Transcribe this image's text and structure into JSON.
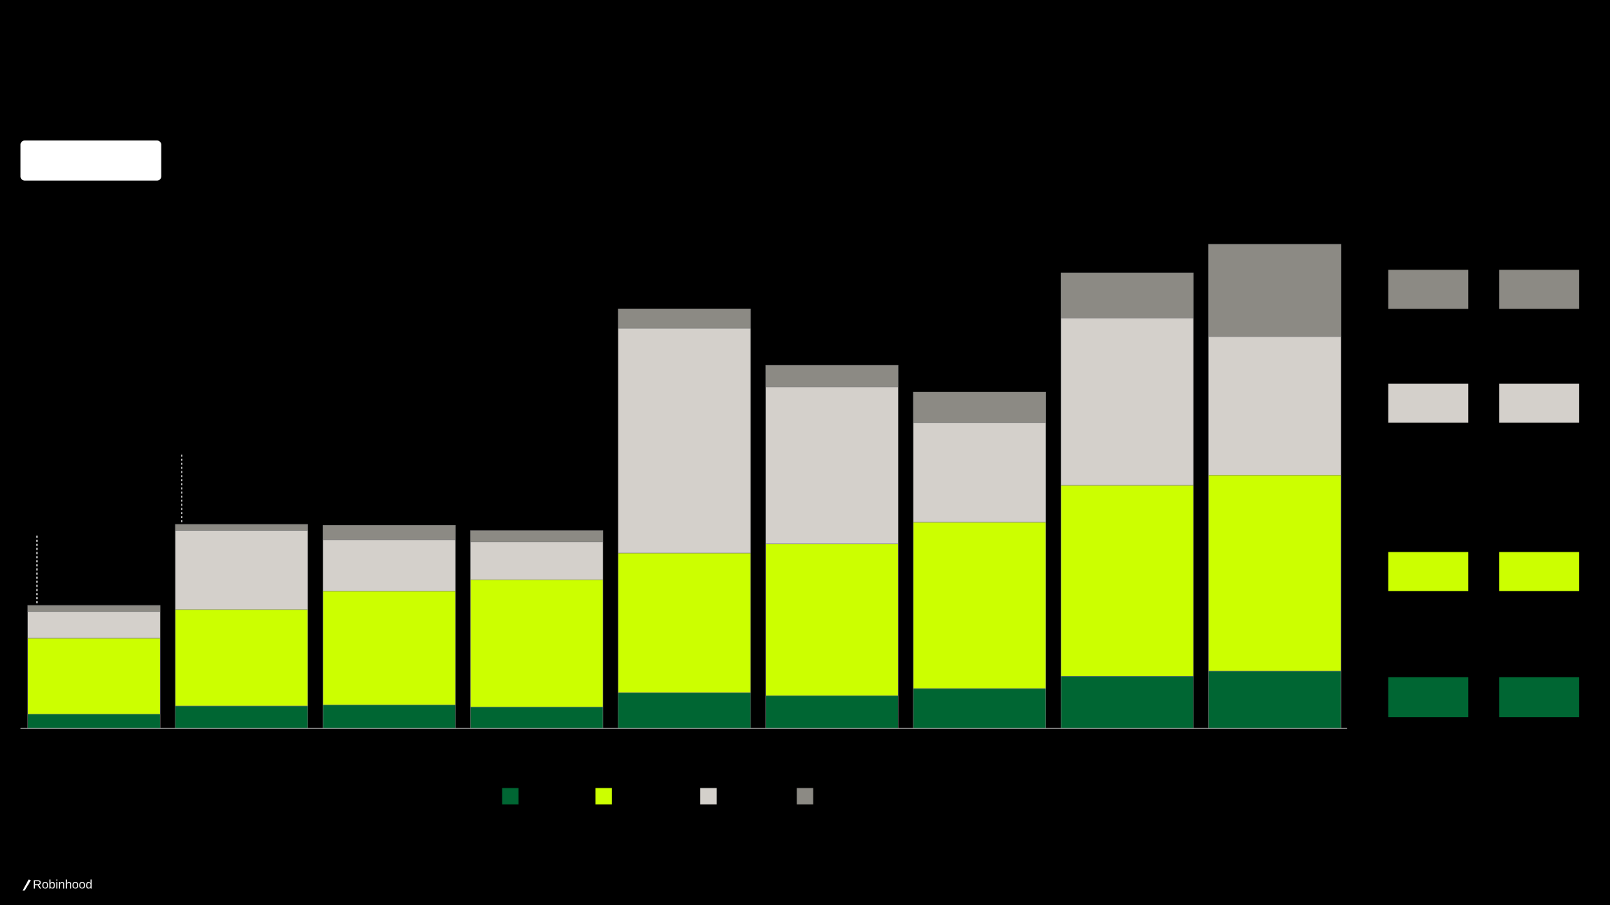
{
  "chart_data": {
    "type": "stacked-bar",
    "categories": [
      null,
      null,
      null,
      null,
      null,
      null,
      null,
      null,
      null
    ],
    "series": [
      {
        "color": "#006633",
        "values": [
          14,
          22,
          23,
          21,
          35,
          32,
          39,
          51,
          56
        ]
      },
      {
        "color": "#ccff00",
        "values": [
          74,
          94,
          111,
          124,
          136,
          148,
          162,
          186,
          191
        ]
      },
      {
        "color": "#d4d0cb",
        "values": [
          26,
          77,
          50,
          37,
          219,
          153,
          97,
          163,
          135
        ]
      },
      {
        "color": "#8c8a84",
        "values": [
          6,
          6,
          14,
          11,
          19,
          21,
          30,
          44,
          90
        ]
      }
    ],
    "ylim": [
      0,
      472
    ]
  },
  "brand": "Robinhood"
}
